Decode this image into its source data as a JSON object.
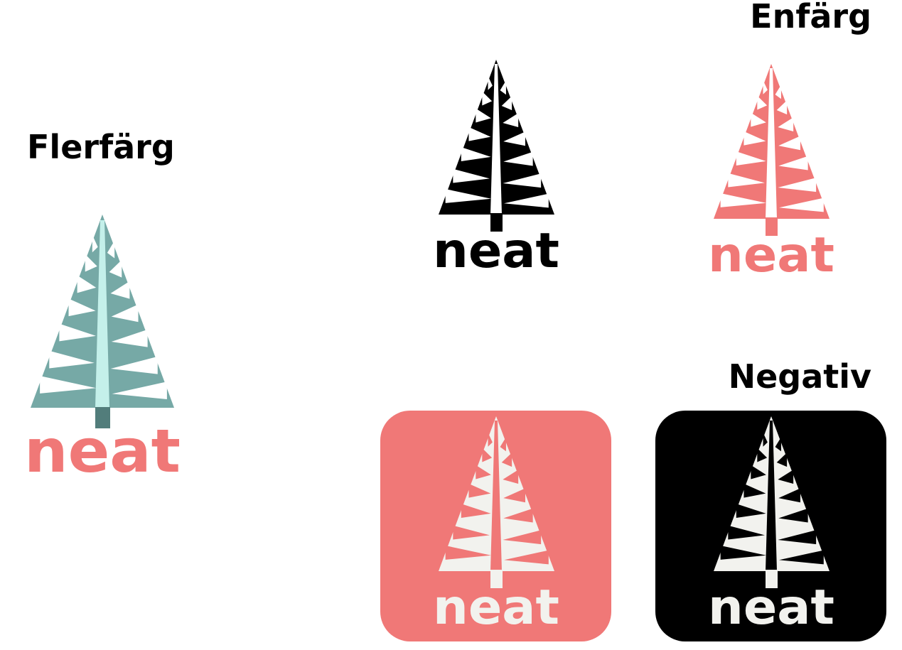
{
  "headings": {
    "multicolor": "Flerfärg",
    "monocolor": "Enfärg",
    "negative": "Negativ"
  },
  "logos": {
    "multicolor": {
      "wordmark": "neat",
      "tree_color": "#76a9a6",
      "trunk_highlight_color": "#c4f0ea",
      "stump_color": "#527d7b",
      "wordmark_color": "#f07877"
    },
    "mono_black": {
      "wordmark": "neat",
      "color": "#000000",
      "gap_color": "#ffffff"
    },
    "mono_coral": {
      "wordmark": "neat",
      "color": "#f07877",
      "gap_color": "#ffffff"
    },
    "negative_coral": {
      "wordmark": "neat",
      "tile_color": "#f07877",
      "logo_color": "#f2f2ee"
    },
    "negative_black": {
      "wordmark": "neat",
      "tile_color": "#000000",
      "logo_color": "#f2f2ee"
    }
  }
}
